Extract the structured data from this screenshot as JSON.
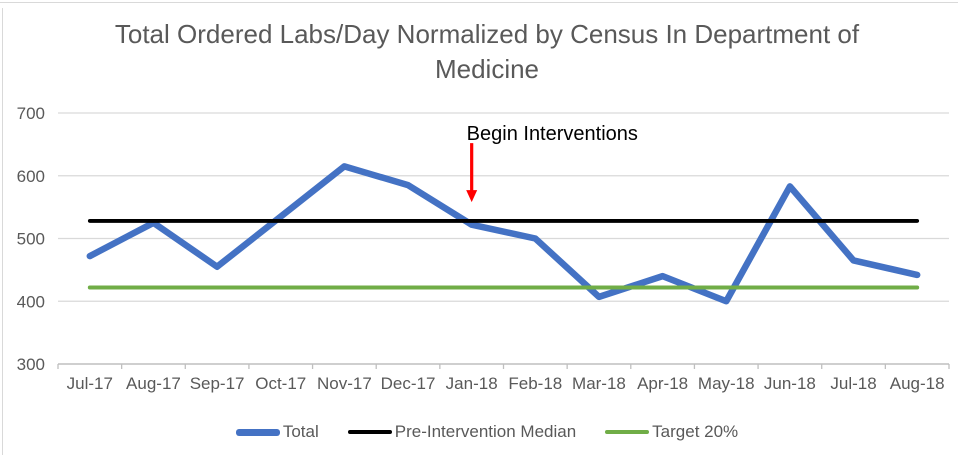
{
  "chart_data": {
    "type": "line",
    "title": "Total Ordered Labs/Day Normalized by Census In Department of Medicine",
    "xlabel": "",
    "ylabel": "",
    "categories": [
      "Jul-17",
      "Aug-17",
      "Sep-17",
      "Oct-17",
      "Nov-17",
      "Dec-17",
      "Jan-18",
      "Feb-18",
      "Mar-18",
      "Apr-18",
      "May-18",
      "Jun-18",
      "Jul-18",
      "Aug-18"
    ],
    "series": [
      {
        "name": "Total",
        "color": "#4472C4",
        "stroke_width": 6.5,
        "legend_thickness": 7,
        "values": [
          472,
          525,
          455,
          535,
          615,
          585,
          522,
          500,
          407,
          440,
          400,
          583,
          465,
          442
        ]
      },
      {
        "name": "Pre-Intervention Median",
        "color": "#000000",
        "stroke_width": 3.8,
        "legend_thickness": 3.5,
        "constant": 528
      },
      {
        "name": "Target 20%",
        "color": "#70AD47",
        "stroke_width": 4,
        "legend_thickness": 4,
        "constant": 422
      }
    ],
    "ylim": [
      300,
      700
    ],
    "yticks": [
      300,
      400,
      500,
      600,
      700
    ],
    "grid": true,
    "legend_position": "bottom",
    "annotation": {
      "text": "Begin Interventions",
      "category": "Jan-18",
      "arrow_color": "#FF0000",
      "arrow_from_value": 652,
      "arrow_to_value": 558
    }
  },
  "colors": {
    "title_text": "#595959",
    "axis_text": "#595959",
    "gridline": "#D9D9D9",
    "axis_line": "#BFBFBF",
    "background": "#FFFFFF"
  }
}
